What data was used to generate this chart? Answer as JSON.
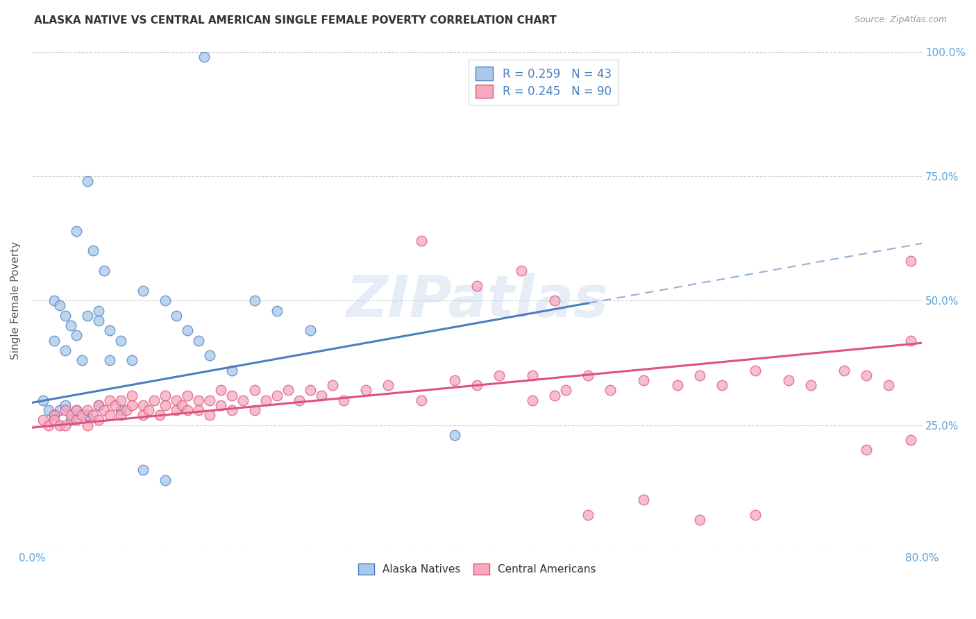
{
  "title": "ALASKA NATIVE VS CENTRAL AMERICAN SINGLE FEMALE POVERTY CORRELATION CHART",
  "source": "Source: ZipAtlas.com",
  "ylabel": "Single Female Poverty",
  "x_min": 0.0,
  "x_max": 0.8,
  "y_min": 0.0,
  "y_max": 1.0,
  "x_tick_labels": [
    "0.0%",
    "",
    "",
    "",
    "",
    "",
    "",
    "",
    "80.0%"
  ],
  "y_tick_labels_right": [
    "",
    "25.0%",
    "50.0%",
    "75.0%",
    "100.0%"
  ],
  "watermark": "ZIPatlas",
  "color_blue_fill": "#A8C8EC",
  "color_pink_fill": "#F4AABB",
  "color_blue_line": "#4A7EC0",
  "color_pink_line": "#E05080",
  "color_blue_text": "#4A7EC0",
  "color_axis_text": "#5BA3D9",
  "color_grid": "#CCCCCC",
  "legend_label1": "R = 0.259   N = 43",
  "legend_label2": "R = 0.245   N = 90",
  "bottom_legend1": "Alaska Natives",
  "bottom_legend2": "Central Americans",
  "ak_line_x0": 0.0,
  "ak_line_y0": 0.295,
  "ak_line_x1": 0.5,
  "ak_line_y1": 0.495,
  "ca_line_x0": 0.0,
  "ca_line_y0": 0.245,
  "ca_line_x1": 0.8,
  "ca_line_y1": 0.415,
  "ak_x": [
    0.155,
    0.05,
    0.04,
    0.055,
    0.065,
    0.02,
    0.025,
    0.03,
    0.035,
    0.04,
    0.02,
    0.03,
    0.045,
    0.05,
    0.06,
    0.06,
    0.07,
    0.07,
    0.08,
    0.09,
    0.1,
    0.12,
    0.13,
    0.14,
    0.15,
    0.16,
    0.18,
    0.2,
    0.22,
    0.25,
    0.01,
    0.015,
    0.02,
    0.025,
    0.03,
    0.035,
    0.04,
    0.05,
    0.06,
    0.08,
    0.1,
    0.12,
    0.38
  ],
  "ak_y": [
    0.99,
    0.74,
    0.64,
    0.6,
    0.56,
    0.5,
    0.49,
    0.47,
    0.45,
    0.43,
    0.42,
    0.4,
    0.38,
    0.47,
    0.48,
    0.46,
    0.44,
    0.38,
    0.42,
    0.38,
    0.52,
    0.5,
    0.47,
    0.44,
    0.42,
    0.39,
    0.36,
    0.5,
    0.48,
    0.44,
    0.3,
    0.28,
    0.27,
    0.28,
    0.29,
    0.26,
    0.28,
    0.27,
    0.29,
    0.28,
    0.16,
    0.14,
    0.23
  ],
  "ca_x": [
    0.01,
    0.015,
    0.02,
    0.02,
    0.025,
    0.03,
    0.03,
    0.035,
    0.04,
    0.04,
    0.045,
    0.05,
    0.05,
    0.055,
    0.06,
    0.06,
    0.065,
    0.07,
    0.07,
    0.075,
    0.08,
    0.08,
    0.085,
    0.09,
    0.09,
    0.1,
    0.1,
    0.105,
    0.11,
    0.115,
    0.12,
    0.12,
    0.13,
    0.13,
    0.135,
    0.14,
    0.14,
    0.15,
    0.15,
    0.16,
    0.16,
    0.17,
    0.17,
    0.18,
    0.18,
    0.19,
    0.2,
    0.2,
    0.21,
    0.22,
    0.23,
    0.24,
    0.25,
    0.26,
    0.27,
    0.28,
    0.3,
    0.32,
    0.35,
    0.38,
    0.4,
    0.42,
    0.45,
    0.45,
    0.47,
    0.48,
    0.5,
    0.52,
    0.55,
    0.58,
    0.6,
    0.62,
    0.65,
    0.68,
    0.7,
    0.73,
    0.75,
    0.77,
    0.79,
    0.79,
    0.35,
    0.4,
    0.44,
    0.47,
    0.5,
    0.55,
    0.6,
    0.65,
    0.75,
    0.79
  ],
  "ca_y": [
    0.26,
    0.25,
    0.27,
    0.26,
    0.25,
    0.28,
    0.25,
    0.27,
    0.26,
    0.28,
    0.27,
    0.25,
    0.28,
    0.27,
    0.29,
    0.26,
    0.28,
    0.3,
    0.27,
    0.29,
    0.27,
    0.3,
    0.28,
    0.29,
    0.31,
    0.27,
    0.29,
    0.28,
    0.3,
    0.27,
    0.29,
    0.31,
    0.28,
    0.3,
    0.29,
    0.31,
    0.28,
    0.3,
    0.28,
    0.3,
    0.27,
    0.32,
    0.29,
    0.31,
    0.28,
    0.3,
    0.28,
    0.32,
    0.3,
    0.31,
    0.32,
    0.3,
    0.32,
    0.31,
    0.33,
    0.3,
    0.32,
    0.33,
    0.3,
    0.34,
    0.33,
    0.35,
    0.3,
    0.35,
    0.31,
    0.32,
    0.35,
    0.32,
    0.34,
    0.33,
    0.35,
    0.33,
    0.36,
    0.34,
    0.33,
    0.36,
    0.35,
    0.33,
    0.42,
    0.22,
    0.62,
    0.53,
    0.56,
    0.5,
    0.07,
    0.1,
    0.06,
    0.07,
    0.2,
    0.58
  ]
}
